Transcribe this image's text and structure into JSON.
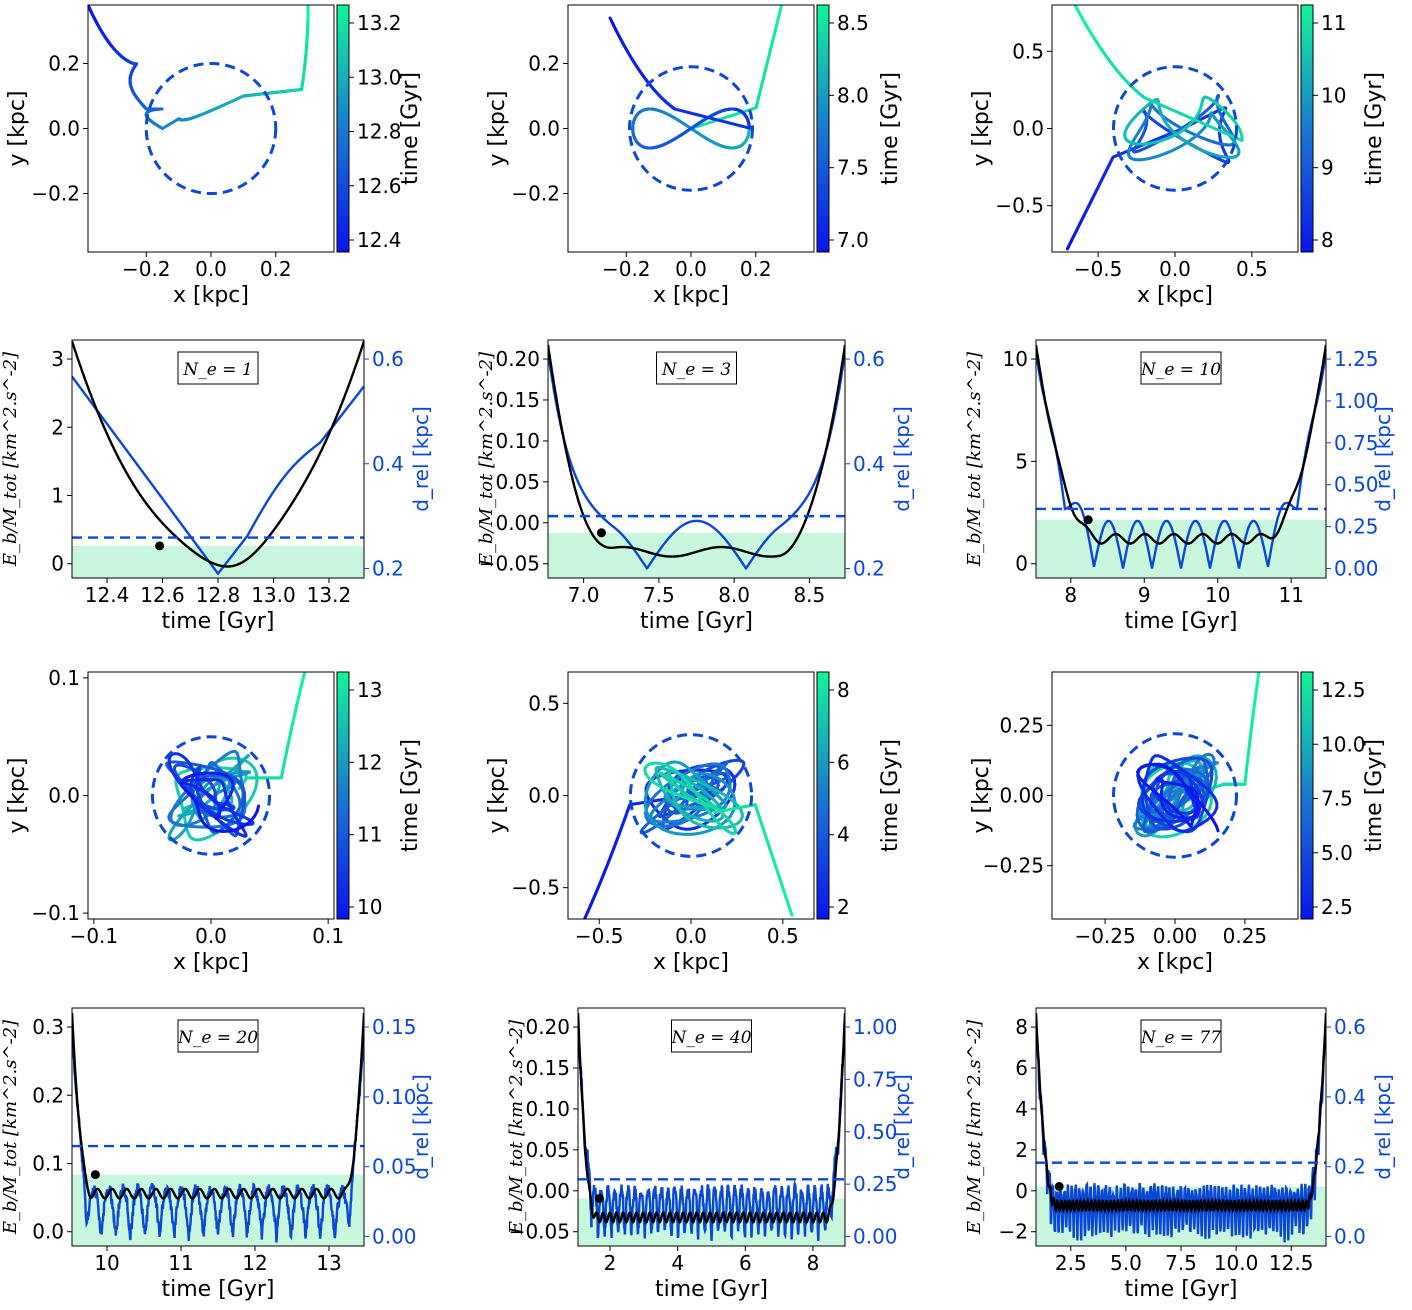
{
  "colors": {
    "primary": "#0a47d6",
    "black": "#000000",
    "bound_region": "#c8f7dd",
    "cmap_low": "#0a14ee",
    "cmap_high": "#12f59a"
  },
  "chart_data": [
    {
      "type": "orbit",
      "panel": "A1",
      "xlabel": "x [kpc]",
      "ylabel": "y [kpc]",
      "cbar_label": "time [Gyr]",
      "xlim": [
        -0.38,
        0.38
      ],
      "ylim": [
        -0.38,
        0.38
      ],
      "xticks": [
        "−0.2",
        "0.0",
        "0.2"
      ],
      "yticks": [
        "−0.2",
        "0.0",
        "0.2"
      ],
      "cbar_ticks": [
        "12.4",
        "12.6",
        "12.8",
        "13.0",
        "13.2"
      ],
      "circle_radius": 0.2
    },
    {
      "type": "orbit",
      "panel": "B1",
      "xlabel": "x [kpc]",
      "ylabel": "y [kpc]",
      "cbar_label": "time [Gyr]",
      "xlim": [
        -0.38,
        0.38
      ],
      "ylim": [
        -0.38,
        0.38
      ],
      "xticks": [
        "−0.2",
        "0.0",
        "0.2"
      ],
      "yticks": [
        "−0.2",
        "0.0",
        "0.2"
      ],
      "cbar_ticks": [
        "7.0",
        "7.5",
        "8.0",
        "8.5"
      ],
      "circle_radius": 0.19
    },
    {
      "type": "orbit",
      "panel": "C1",
      "xlabel": "x [kpc]",
      "ylabel": "y [kpc]",
      "cbar_label": "time [Gyr]",
      "xlim": [
        -0.8,
        0.8
      ],
      "ylim": [
        -0.8,
        0.8
      ],
      "xticks": [
        "−0.5",
        "0.0",
        "0.5"
      ],
      "yticks": [
        "−0.5",
        "0.0",
        "0.5"
      ],
      "cbar_ticks": [
        "8",
        "9",
        "10",
        "11"
      ],
      "circle_radius": 0.4
    },
    {
      "type": "line",
      "panel": "A2",
      "xlabel": "time [Gyr]",
      "ylabel": "E_b/M_tot [km^2.s^-2]",
      "y2label": "d_rel [kpc]",
      "box_label": "N_e = 1",
      "xticks": [
        "12.4",
        "12.6",
        "12.8",
        "13.0",
        "13.2"
      ],
      "yticks": [
        "0",
        "1",
        "2",
        "3"
      ],
      "y2ticks": [
        "0.2",
        "0.4",
        "0.6"
      ]
    },
    {
      "type": "line",
      "panel": "B2",
      "xlabel": "time [Gyr]",
      "ylabel": "E_b/M_tot [km^2.s^-2]",
      "y2label": "d_rel [kpc]",
      "box_label": "N_e = 3",
      "xticks": [
        "7.0",
        "7.5",
        "8.0",
        "8.5"
      ],
      "yticks": [
        "−0.05",
        "0.00",
        "0.05",
        "0.10",
        "0.15",
        "0.20"
      ],
      "y2ticks": [
        "0.2",
        "0.4",
        "0.6"
      ]
    },
    {
      "type": "line",
      "panel": "C2",
      "xlabel": "time [Gyr]",
      "ylabel": "E_b/M_tot [km^2.s^-2]",
      "y2label": "d_rel [kpc]",
      "box_label": "N_e = 10",
      "xticks": [
        "8",
        "9",
        "10",
        "11"
      ],
      "yticks": [
        "0",
        "5",
        "10"
      ],
      "y2ticks": [
        "0.00",
        "0.25",
        "0.50",
        "0.75",
        "1.00",
        "1.25"
      ]
    },
    {
      "type": "orbit",
      "panel": "A3",
      "xlabel": "x [kpc]",
      "ylabel": "y [kpc]",
      "cbar_label": "time [Gyr]",
      "xlim": [
        -0.105,
        0.105
      ],
      "ylim": [
        -0.105,
        0.105
      ],
      "xticks": [
        "−0.1",
        "0.0",
        "0.1"
      ],
      "yticks": [
        "−0.1",
        "0.0",
        "0.1"
      ],
      "cbar_ticks": [
        "10",
        "11",
        "12",
        "13"
      ],
      "circle_radius": 0.05
    },
    {
      "type": "orbit",
      "panel": "B3",
      "xlabel": "x [kpc]",
      "ylabel": "y [kpc]",
      "cbar_label": "time [Gyr]",
      "xlim": [
        -0.67,
        0.67
      ],
      "ylim": [
        -0.67,
        0.67
      ],
      "xticks": [
        "−0.5",
        "0.0",
        "0.5"
      ],
      "yticks": [
        "−0.5",
        "0.0",
        "0.5"
      ],
      "cbar_ticks": [
        "2",
        "4",
        "6",
        "8"
      ],
      "circle_radius": 0.33
    },
    {
      "type": "orbit",
      "panel": "C3",
      "xlabel": "x [kpc]",
      "ylabel": "y [kpc]",
      "cbar_label": "time [Gyr]",
      "xlim": [
        -0.44,
        0.44
      ],
      "ylim": [
        -0.44,
        0.44
      ],
      "xticks": [
        "−0.25",
        "0.00",
        "0.25"
      ],
      "yticks": [
        "−0.25",
        "0.00",
        "0.25"
      ],
      "cbar_ticks": [
        "2.5",
        "5.0",
        "7.5",
        "10.0",
        "12.5"
      ],
      "circle_radius": 0.22
    },
    {
      "type": "line",
      "panel": "A4",
      "xlabel": "time [Gyr]",
      "ylabel": "E_b/M_tot [km^2.s^-2]",
      "y2label": "d_rel [kpc]",
      "box_label": "N_e = 20",
      "xticks": [
        "10",
        "11",
        "12",
        "13"
      ],
      "yticks": [
        "0.0",
        "0.1",
        "0.2",
        "0.3"
      ],
      "y2ticks": [
        "0.00",
        "0.05",
        "0.10",
        "0.15"
      ]
    },
    {
      "type": "line",
      "panel": "B4",
      "xlabel": "time [Gyr]",
      "ylabel": "E_b/M_tot [km^2.s^-2]",
      "y2label": "d_rel [kpc]",
      "box_label": "N_e = 40",
      "xticks": [
        "2",
        "4",
        "6",
        "8"
      ],
      "yticks": [
        "−0.05",
        "0.00",
        "0.05",
        "0.10",
        "0.15",
        "0.20"
      ],
      "y2ticks": [
        "0.00",
        "0.25",
        "0.50",
        "0.75",
        "1.00"
      ]
    },
    {
      "type": "line",
      "panel": "C4",
      "xlabel": "time [Gyr]",
      "ylabel": "E_b/M_tot [km^2.s^-2]",
      "y2label": "d_rel [kpc]",
      "box_label": "N_e = 77",
      "xticks": [
        "2.5",
        "5.0",
        "7.5",
        "10.0",
        "12.5"
      ],
      "yticks": [
        "−2",
        "0",
        "2",
        "4",
        "6",
        "8"
      ],
      "y2ticks": [
        "0.0",
        "0.2",
        "0.4",
        "0.6"
      ]
    }
  ]
}
